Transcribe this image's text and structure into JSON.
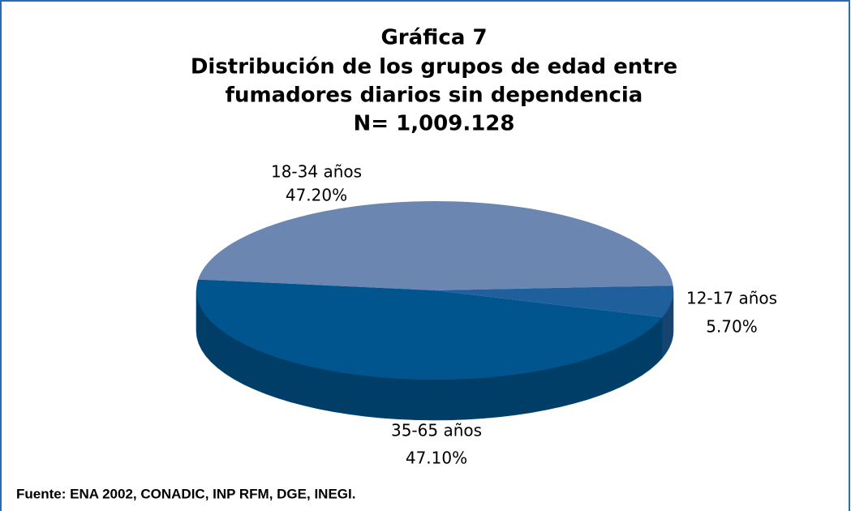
{
  "chart_data": {
    "type": "pie",
    "title": "Gráfica 7",
    "subtitle": [
      "Distribución de los grupos de edad entre",
      "fumadores diarios sin dependencia",
      "N= 1,009.128"
    ],
    "categories": [
      "18-34 años",
      "12-17 años",
      "35-65 años"
    ],
    "values": [
      47.2,
      5.7,
      47.1
    ],
    "value_labels": [
      "47.20%",
      "5.70%",
      "47.10%"
    ],
    "colors": [
      "#6b86b1",
      "#1f5f9c",
      "#00558f"
    ],
    "source": "Fuente: ENA 2002, CONADIC, INP RFM, DGE, INEGI."
  }
}
